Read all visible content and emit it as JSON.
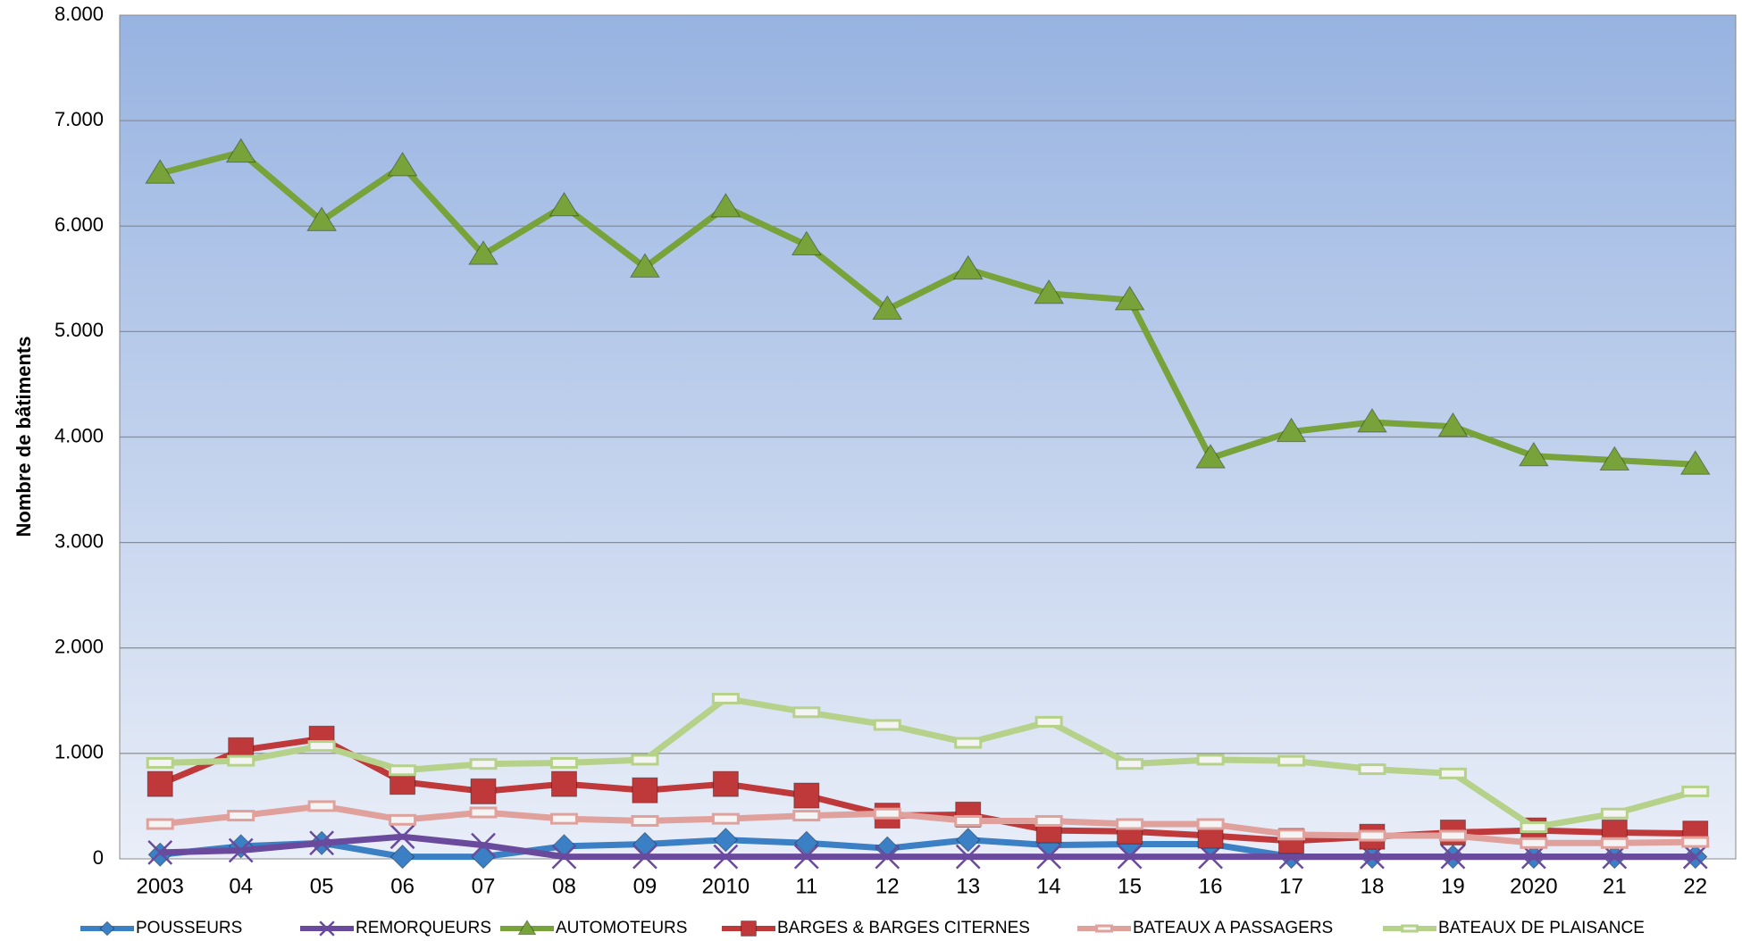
{
  "chart_data": {
    "type": "line",
    "y_label": "Nombre de bâtiments",
    "categories": [
      "2003",
      "04",
      "05",
      "06",
      "07",
      "08",
      "09",
      "2010",
      "11",
      "12",
      "13",
      "14",
      "15",
      "16",
      "17",
      "18",
      "19",
      "2020",
      "21",
      "22"
    ],
    "ylim": [
      0,
      8000
    ],
    "yticks": [
      0,
      {
        "value": 1000,
        "label": "1.000"
      },
      {
        "value": 2000,
        "label": "2.000"
      },
      {
        "value": 3000,
        "label": "3.000"
      },
      {
        "value": 4000,
        "label": "4.000"
      },
      {
        "value": 5000,
        "label": "5.000"
      },
      {
        "value": 6000,
        "label": "6.000"
      },
      {
        "value": 7000,
        "label": "7.000"
      },
      {
        "value": 8000,
        "label": "8.000"
      }
    ],
    "grid": true,
    "legend": "bottom",
    "series": [
      {
        "name": "POUSSEURS",
        "color": "#3b7fc4",
        "marker": "diamond",
        "values": [
          40,
          120,
          150,
          20,
          20,
          120,
          140,
          180,
          150,
          100,
          180,
          130,
          140,
          140,
          20,
          20,
          20,
          20,
          20,
          20
        ]
      },
      {
        "name": "REMORQUEURS",
        "color": "#6a4a9c",
        "marker": "x",
        "values": [
          60,
          80,
          150,
          210,
          130,
          20,
          20,
          20,
          20,
          20,
          20,
          20,
          20,
          20,
          20,
          20,
          20,
          20,
          20,
          20
        ]
      },
      {
        "name": "AUTOMOTEURS",
        "color": "#77a33a",
        "marker": "triangle",
        "values": [
          6500,
          6700,
          6050,
          6570,
          5730,
          6190,
          5610,
          6180,
          5820,
          5210,
          5590,
          5360,
          5300,
          3800,
          4050,
          4140,
          4100,
          3820,
          3780,
          3740
        ]
      },
      {
        "name": "BARGES & BARGES CITERNES",
        "color": "#c0393a",
        "marker": "square",
        "values": [
          710,
          1030,
          1140,
          730,
          640,
          710,
          650,
          710,
          600,
          410,
          420,
          270,
          260,
          220,
          170,
          210,
          250,
          270,
          250,
          240
        ]
      },
      {
        "name": "BATEAUX A PASSAGERS",
        "color": "#e0a09c",
        "marker": "rect",
        "values": [
          330,
          410,
          500,
          370,
          440,
          380,
          360,
          380,
          410,
          430,
          360,
          360,
          330,
          330,
          230,
          220,
          220,
          150,
          150,
          160
        ]
      },
      {
        "name": "BATEAUX DE PLAISANCE",
        "color": "#b5d18a",
        "marker": "rect",
        "values": [
          910,
          930,
          1070,
          840,
          900,
          910,
          940,
          1520,
          1390,
          1270,
          1100,
          1300,
          900,
          940,
          930,
          850,
          810,
          300,
          430,
          640
        ]
      }
    ]
  }
}
